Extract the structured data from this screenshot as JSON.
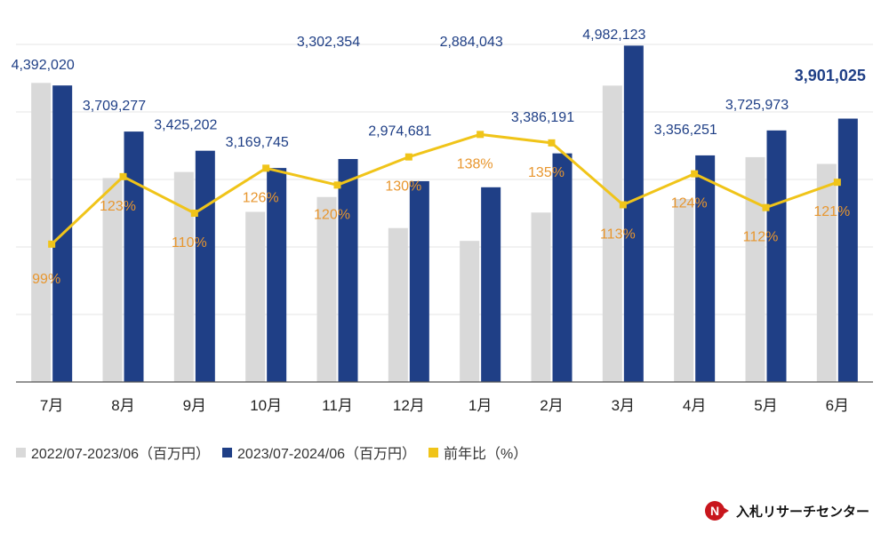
{
  "chart_data": {
    "type": "bar",
    "categories": [
      "7月",
      "8月",
      "9月",
      "10月",
      "11月",
      "12月",
      "1月",
      "2月",
      "3月",
      "4月",
      "5月",
      "6月"
    ],
    "series": [
      {
        "name": "2022/07-2023/06（百万円）",
        "color": "#d9d9d9",
        "values": [
          4430000,
          3020000,
          3110000,
          2520000,
          2740000,
          2280000,
          2090000,
          2510000,
          4390000,
          2710000,
          3330000,
          3230000
        ]
      },
      {
        "name": "2023/07-2024/06（百万円）",
        "color": "#1f3f86",
        "values": [
          4392020,
          3709277,
          3425202,
          3169745,
          3302354,
          2974681,
          2884043,
          3386191,
          4982123,
          3356251,
          3725973,
          3901025
        ],
        "labels": [
          "4,392,020",
          "3,709,277",
          "3,425,202",
          "3,169,745",
          "3,302,354",
          "2,974,681",
          "2,884,043",
          "3,386,191",
          "4,982,123",
          "3,356,251",
          "3,725,973",
          "3,901,025"
        ]
      },
      {
        "name": "前年比（%）",
        "color": "#f0c419",
        "axis": "secondary",
        "values": [
          99,
          123,
          110,
          126,
          120,
          130,
          138,
          135,
          113,
          124,
          112,
          121
        ],
        "labels": [
          "99%",
          "123%",
          "110%",
          "126%",
          "120%",
          "130%",
          "138%",
          "135%",
          "113%",
          "124%",
          "112%",
          "121%"
        ]
      }
    ],
    "ylim": [
      0,
      5000000
    ],
    "y2lim": [
      50,
      170
    ],
    "grid": true,
    "title": "",
    "xlabel": "",
    "ylabel": "",
    "legend_position": "bottom-left"
  },
  "brand": {
    "name": "入札リサーチセンター"
  },
  "colors": {
    "value_label": "#1f3f86",
    "ratio_label": "#e8962e"
  }
}
